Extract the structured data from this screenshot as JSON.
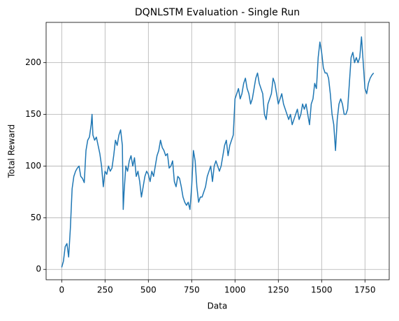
{
  "chart_data": {
    "type": "line",
    "title": "DQNLSTM Evaluation - Single Run",
    "xlabel": "Data",
    "ylabel": "Total Reward",
    "color": "#1f77b4",
    "grid": true,
    "xlim": [
      -90,
      1890
    ],
    "ylim": [
      -10,
      239
    ],
    "xticks": [
      0,
      250,
      500,
      750,
      1000,
      1250,
      1500,
      1750
    ],
    "yticks": [
      0,
      50,
      100,
      150,
      200
    ],
    "x": [
      0,
      10,
      20,
      30,
      40,
      50,
      60,
      70,
      80,
      90,
      100,
      110,
      120,
      130,
      140,
      150,
      160,
      170,
      175,
      180,
      190,
      200,
      210,
      220,
      230,
      240,
      250,
      260,
      270,
      280,
      290,
      300,
      310,
      320,
      330,
      340,
      350,
      355,
      360,
      370,
      380,
      390,
      400,
      410,
      420,
      430,
      440,
      450,
      460,
      470,
      480,
      490,
      500,
      510,
      520,
      530,
      540,
      550,
      560,
      570,
      580,
      590,
      600,
      610,
      620,
      630,
      640,
      650,
      660,
      670,
      680,
      690,
      700,
      710,
      720,
      730,
      740,
      750,
      760,
      770,
      780,
      790,
      800,
      810,
      820,
      830,
      840,
      850,
      860,
      870,
      880,
      890,
      900,
      910,
      920,
      930,
      940,
      950,
      960,
      970,
      980,
      990,
      1000,
      1010,
      1020,
      1030,
      1040,
      1050,
      1060,
      1070,
      1080,
      1090,
      1100,
      1110,
      1120,
      1130,
      1140,
      1150,
      1160,
      1170,
      1180,
      1190,
      1200,
      1210,
      1220,
      1230,
      1240,
      1250,
      1260,
      1270,
      1280,
      1290,
      1300,
      1310,
      1320,
      1330,
      1340,
      1350,
      1360,
      1370,
      1380,
      1390,
      1400,
      1410,
      1420,
      1430,
      1440,
      1450,
      1460,
      1470,
      1480,
      1490,
      1500,
      1510,
      1520,
      1530,
      1540,
      1550,
      1560,
      1570,
      1580,
      1590,
      1600,
      1610,
      1620,
      1630,
      1640,
      1650,
      1660,
      1670,
      1680,
      1690,
      1700,
      1710,
      1720,
      1730,
      1740,
      1750,
      1760,
      1770,
      1780,
      1790,
      1800
    ],
    "values": [
      2,
      8,
      22,
      25,
      12,
      40,
      78,
      90,
      95,
      98,
      100,
      90,
      88,
      84,
      115,
      125,
      128,
      140,
      150,
      130,
      125,
      128,
      120,
      112,
      100,
      80,
      95,
      92,
      100,
      95,
      98,
      110,
      125,
      120,
      130,
      135,
      120,
      58,
      75,
      100,
      95,
      105,
      110,
      100,
      108,
      90,
      95,
      85,
      70,
      80,
      90,
      95,
      92,
      85,
      95,
      90,
      100,
      110,
      115,
      125,
      118,
      115,
      110,
      112,
      98,
      100,
      105,
      85,
      80,
      90,
      88,
      80,
      70,
      65,
      62,
      65,
      58,
      80,
      115,
      105,
      80,
      65,
      70,
      70,
      75,
      80,
      90,
      95,
      100,
      85,
      100,
      105,
      100,
      95,
      100,
      110,
      120,
      125,
      110,
      120,
      125,
      130,
      165,
      170,
      175,
      165,
      170,
      180,
      185,
      175,
      170,
      160,
      165,
      175,
      185,
      190,
      180,
      175,
      170,
      150,
      145,
      160,
      165,
      170,
      185,
      180,
      170,
      160,
      165,
      170,
      160,
      155,
      150,
      145,
      150,
      140,
      145,
      150,
      155,
      145,
      150,
      160,
      155,
      160,
      150,
      140,
      160,
      165,
      180,
      175,
      205,
      220,
      210,
      195,
      190,
      190,
      185,
      170,
      150,
      140,
      115,
      145,
      160,
      165,
      160,
      150,
      150,
      155,
      180,
      205,
      210,
      200,
      205,
      200,
      205,
      225,
      200,
      175,
      170,
      180,
      185,
      188,
      190
    ]
  }
}
